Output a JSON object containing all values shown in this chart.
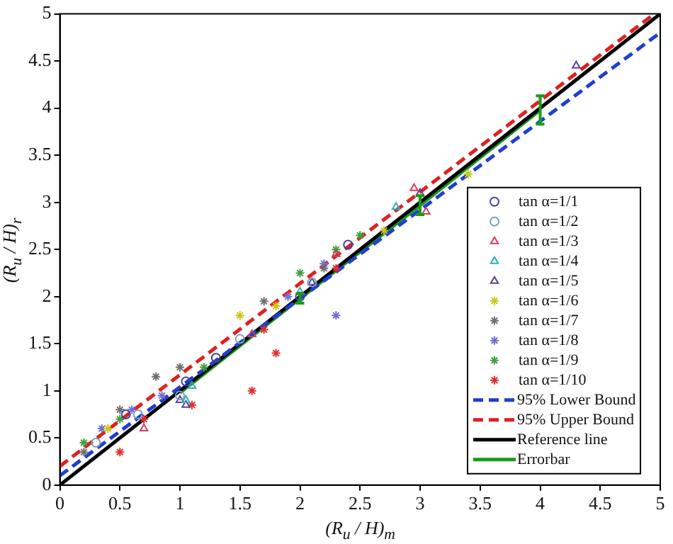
{
  "chart_data": {
    "type": "scatter",
    "xlabel": "(R$_{u}$ / H)$_{m}$",
    "ylabel": "(R$_{u}$ / H)$_{r}$",
    "xlim": [
      0,
      5
    ],
    "ylim": [
      0,
      5
    ],
    "xticks": [
      0,
      0.5,
      1,
      1.5,
      2,
      2.5,
      3,
      3.5,
      4,
      4.5,
      5
    ],
    "yticks": [
      0,
      0.5,
      1,
      1.5,
      2,
      2.5,
      3,
      3.5,
      4,
      4.5,
      5
    ],
    "grid": false,
    "legend": "bottom right",
    "series": [
      {
        "name": "tan α=1/1",
        "color": "#4040a0",
        "marker": "circle",
        "x": [
          0.55,
          1.05,
          1.3,
          2.0,
          2.4
        ],
        "values": [
          0.75,
          1.1,
          1.35,
          2.0,
          2.55
        ]
      },
      {
        "name": "tan α=1/2",
        "color": "#7f9fbf",
        "marker": "circle",
        "x": [
          0.3,
          0.65,
          1.0,
          1.5,
          2.1
        ],
        "values": [
          0.45,
          0.75,
          0.95,
          1.55,
          2.15
        ]
      },
      {
        "name": "tan α=1/3",
        "color": "#d04060",
        "marker": "triangle",
        "x": [
          0.7,
          1.6,
          2.3,
          2.95,
          3.05
        ],
        "values": [
          0.6,
          1.6,
          2.45,
          3.15,
          2.9
        ]
      },
      {
        "name": "tan α=1/4",
        "color": "#30b0b0",
        "marker": "triangle",
        "x": [
          1.05,
          1.1,
          2.0,
          2.8
        ],
        "values": [
          0.9,
          1.05,
          2.05,
          2.95
        ]
      },
      {
        "name": "tan α=1/5",
        "color": "#6040a0",
        "marker": "triangle",
        "x": [
          1.0,
          1.05,
          2.1,
          3.0,
          4.3
        ],
        "values": [
          0.9,
          0.85,
          2.15,
          3.1,
          4.45
        ]
      },
      {
        "name": "tan α=1/6",
        "color": "#c8c820",
        "marker": "cross",
        "x": [
          0.4,
          1.5,
          1.8,
          2.7,
          3.4
        ],
        "values": [
          0.6,
          1.8,
          1.9,
          2.7,
          3.3
        ]
      },
      {
        "name": "tan α=1/7",
        "color": "#707070",
        "marker": "cross",
        "x": [
          0.2,
          0.5,
          0.8,
          1.0,
          1.7,
          2.2
        ],
        "values": [
          0.35,
          0.8,
          1.15,
          1.25,
          1.95,
          2.3
        ]
      },
      {
        "name": "tan α=1/8",
        "color": "#7070d0",
        "marker": "cross",
        "x": [
          0.35,
          0.6,
          0.85,
          1.9,
          2.2,
          2.3
        ],
        "values": [
          0.6,
          0.8,
          0.95,
          2.0,
          2.35,
          1.8
        ]
      },
      {
        "name": "tan α=1/9",
        "color": "#40a040",
        "marker": "cross",
        "x": [
          0.2,
          0.5,
          1.2,
          2.0,
          2.3,
          2.5
        ],
        "values": [
          0.45,
          0.7,
          1.25,
          2.25,
          2.5,
          2.65
        ]
      },
      {
        "name": "tan α=1/10",
        "color": "#e03030",
        "marker": "cross",
        "x": [
          0.5,
          0.7,
          1.1,
          1.6,
          1.7,
          1.8,
          2.3
        ],
        "values": [
          0.35,
          0.7,
          0.85,
          1.0,
          1.65,
          1.4,
          2.3
        ]
      },
      {
        "name": "95% Lower Bound",
        "type": "line",
        "color": "#1f3fd0",
        "line_style": "dashed",
        "marker": "none",
        "x": [
          0,
          5
        ],
        "values": [
          0.1,
          4.8
        ]
      },
      {
        "name": "95% Upper Bound",
        "type": "line",
        "color": "#e02020",
        "line_style": "dashed",
        "marker": "none",
        "x": [
          0,
          4.95
        ],
        "values": [
          0.2,
          5
        ]
      },
      {
        "name": "Reference line",
        "type": "line",
        "color": "#000000",
        "line_style": "solid",
        "marker": "none",
        "x": [
          0,
          5
        ],
        "values": [
          0,
          5
        ]
      },
      {
        "name": "Errorbar",
        "type": "line",
        "color": "#1a9a1a",
        "line_style": "solid",
        "marker": "none",
        "x": [
          1,
          2,
          3,
          4
        ],
        "values": [
          0.98,
          1.98,
          2.97,
          3.98
        ],
        "errors": [
          null,
          0.05,
          0.1,
          0.15
        ]
      }
    ]
  }
}
